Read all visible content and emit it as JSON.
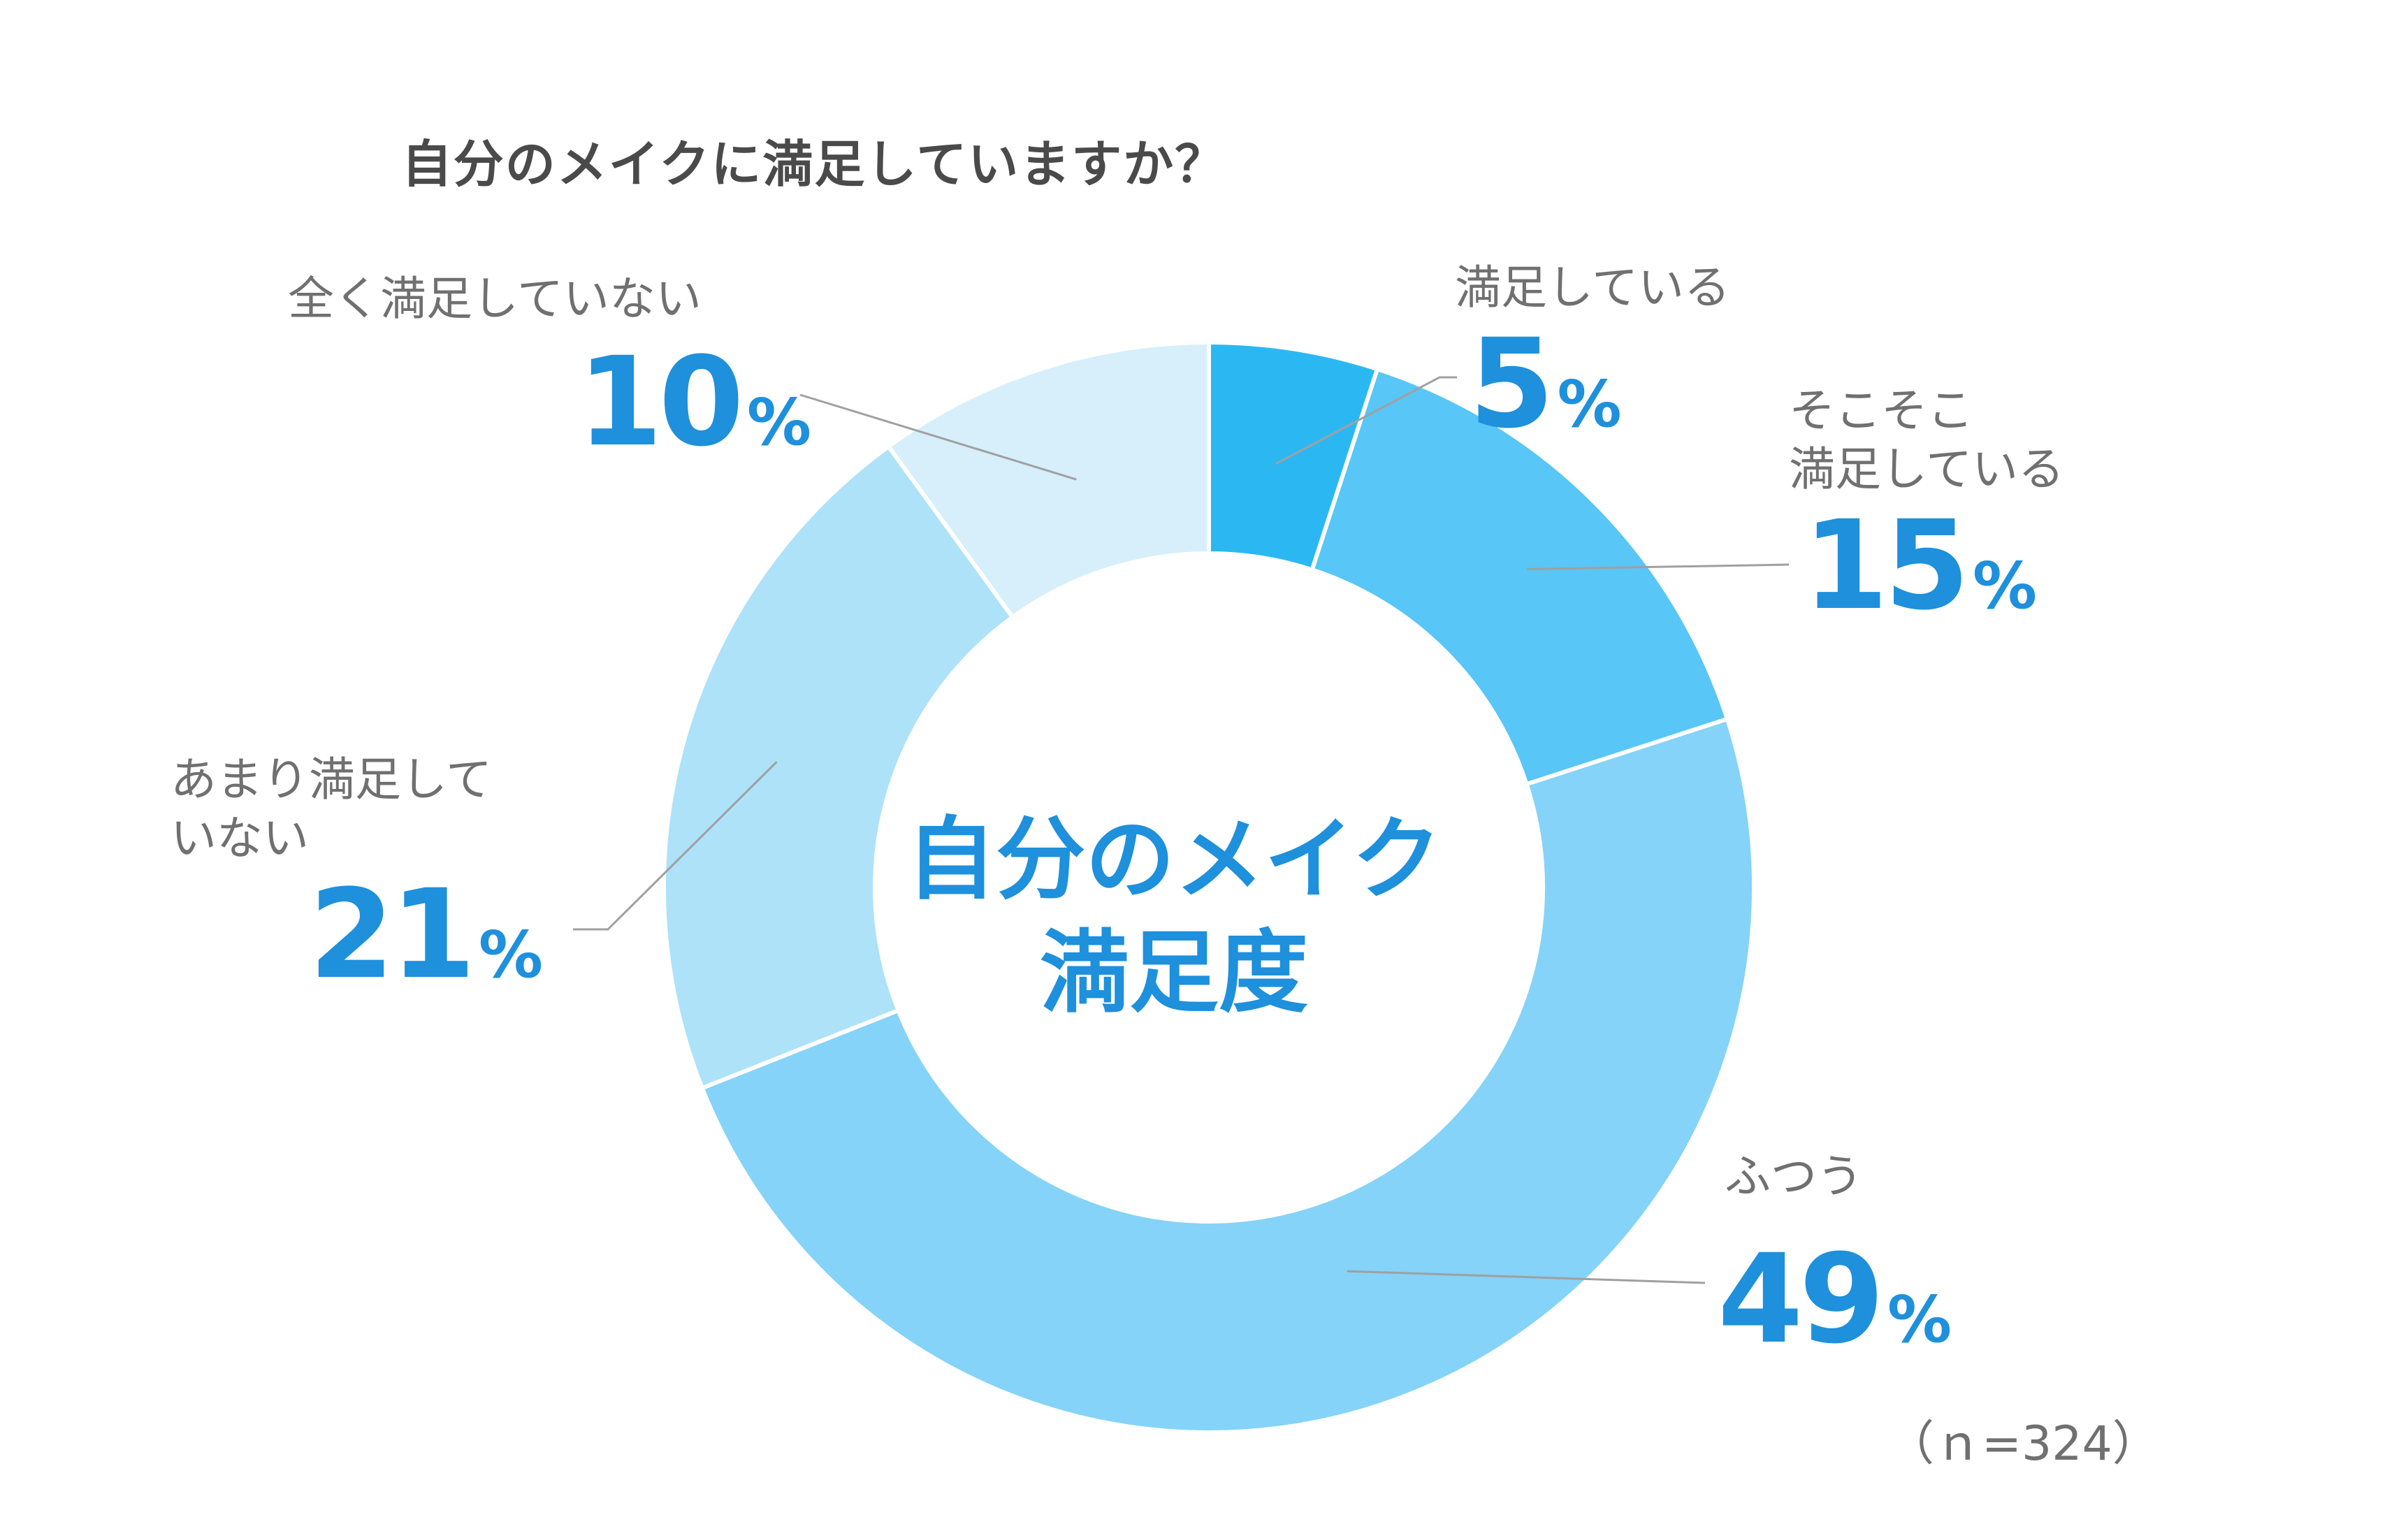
{
  "chart_data": {
    "type": "pie",
    "title": "自分のメイクに満足していますか？",
    "center_label": [
      "自分のメイク",
      "満足度"
    ],
    "sample_note": "（ｎ=324）",
    "unit": "%",
    "slices": [
      {
        "label_lines": [
          "満足している"
        ],
        "value": 5,
        "color": "#2bb8f2"
      },
      {
        "label_lines": [
          "そこそこ",
          "満足している"
        ],
        "value": 15,
        "color": "#58c6f6"
      },
      {
        "label_lines": [
          "ふつう"
        ],
        "value": 49,
        "color": "#85d3f8"
      },
      {
        "label_lines": [
          "あまり満足して",
          "いない"
        ],
        "value": 21,
        "color": "#ade2f9"
      },
      {
        "label_lines": [
          "全く満足していない"
        ],
        "value": 10,
        "color": "#d6effb"
      }
    ]
  },
  "colors": {
    "accent": "#1e90dc",
    "label_text": "#707070",
    "title_text": "#4a4a4a",
    "leader_line": "#a0a0a0",
    "slice_divider": "#ffffff"
  }
}
